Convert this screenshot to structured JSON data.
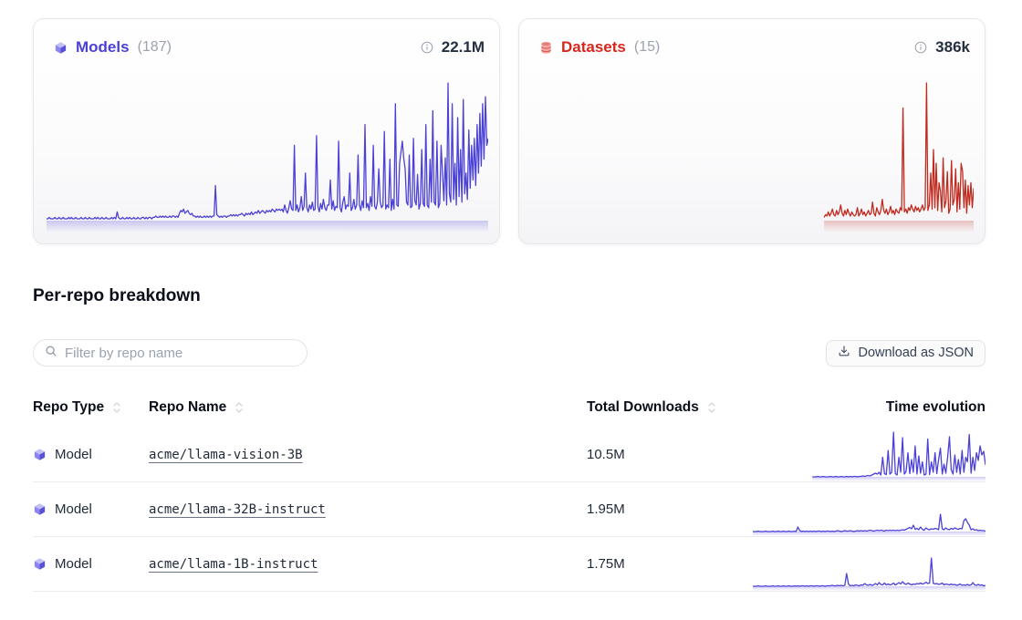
{
  "cards": [
    {
      "title": "Models",
      "count": "(187)",
      "total": "22.1M",
      "accent": "#4a40d4"
    },
    {
      "title": "Datasets",
      "count": "(15)",
      "total": "386k",
      "accent": "#d7271d"
    }
  ],
  "section": {
    "title": "Per-repo breakdown"
  },
  "controls": {
    "filter_placeholder": "Filter by repo name",
    "download_label": "Download as JSON"
  },
  "table": {
    "headers": [
      {
        "label": "Repo Type",
        "sortable": true
      },
      {
        "label": "Repo Name",
        "sortable": true
      },
      {
        "label": "Total Downloads",
        "sortable": true
      },
      {
        "label": "Time evolution",
        "sortable": false
      }
    ],
    "rows": [
      {
        "type": "Model",
        "name": "acme/llama-vision-3B",
        "downloads": "10.5M"
      },
      {
        "type": "Model",
        "name": "acme/llama-32B-instruct",
        "downloads": "1.95M"
      },
      {
        "type": "Model",
        "name": "acme/llama-1B-instruct",
        "downloads": "1.75M"
      }
    ]
  },
  "chart_data": [
    {
      "type": "line",
      "name": "Models downloads over time",
      "color": "#4b41d7",
      "offset": 0,
      "values": [
        2,
        2,
        3,
        2,
        2,
        2,
        3,
        2,
        2,
        3,
        2,
        2,
        3,
        2,
        2,
        2,
        3,
        2,
        3,
        2,
        2,
        3,
        2,
        2,
        2,
        3,
        2,
        2,
        3,
        2,
        2,
        3,
        2,
        2,
        2,
        3,
        2,
        3,
        2,
        2,
        3,
        2,
        2,
        3,
        2,
        2,
        2,
        3,
        2,
        3,
        2,
        7,
        3,
        2,
        2,
        3,
        2,
        2,
        3,
        2,
        3,
        2,
        2,
        3,
        2,
        2,
        3,
        2,
        2,
        3,
        3,
        2,
        3,
        2,
        3,
        3,
        2,
        3,
        3,
        4,
        3,
        3,
        4,
        3,
        4,
        3,
        4,
        3,
        3,
        4,
        3,
        4,
        4,
        3,
        4,
        3,
        6,
        8,
        7,
        9,
        6,
        7,
        8,
        6,
        5,
        6,
        4,
        4,
        3,
        4,
        3,
        4,
        3,
        3,
        4,
        3,
        4,
        3,
        4,
        3,
        4,
        4,
        26,
        5,
        4,
        3,
        4,
        3,
        4,
        4,
        3,
        4,
        4,
        5,
        4,
        5,
        4,
        5,
        4,
        5,
        5,
        6,
        5,
        4,
        6,
        5,
        6,
        5,
        7,
        5,
        6,
        7,
        6,
        8,
        6,
        7,
        8,
        7,
        6,
        8,
        7,
        8,
        7,
        9,
        8,
        7,
        9,
        8,
        9,
        8,
        9,
        7,
        12,
        8,
        6,
        10,
        15,
        9,
        8,
        55,
        8,
        12,
        7,
        10,
        18,
        8,
        11,
        35,
        10,
        7,
        12,
        9,
        14,
        8,
        9,
        62,
        11,
        7,
        13,
        9,
        16,
        10,
        8,
        12,
        12,
        30,
        9,
        15,
        8,
        11,
        10,
        58,
        10,
        7,
        14,
        18,
        9,
        12,
        11,
        35,
        8,
        10,
        16,
        9,
        12,
        48,
        12,
        8,
        15,
        10,
        70,
        10,
        13,
        8,
        18,
        11,
        55,
        11,
        9,
        14,
        38,
        14,
        10,
        12,
        65,
        9,
        12,
        10,
        45,
        8,
        16,
        9,
        85,
        12,
        11,
        42,
        50,
        58,
        46,
        38,
        14,
        12,
        48,
        10,
        11,
        60,
        15,
        12,
        34,
        9,
        13,
        52,
        13,
        11,
        70,
        12,
        10,
        45,
        14,
        80,
        14,
        12,
        58,
        10,
        13,
        55,
        36,
        15,
        46,
        12,
        100,
        20,
        14,
        85,
        16,
        42,
        12,
        75,
        18,
        52,
        14,
        88,
        20,
        35,
        16,
        66,
        24,
        55,
        30,
        60,
        26,
        70,
        35,
        78,
        40,
        85,
        45,
        90,
        55,
        60
      ]
    },
    {
      "type": "line",
      "name": "Datasets downloads over time",
      "color": "#c02a1e",
      "offset": 211,
      "values": [
        3,
        5,
        4,
        7,
        4,
        6,
        9,
        5,
        4,
        8,
        5,
        7,
        12,
        6,
        4,
        8,
        5,
        9,
        6,
        4,
        7,
        5,
        4,
        5,
        10,
        4,
        6,
        9,
        5,
        7,
        4,
        6,
        8,
        5,
        6,
        14,
        6,
        4,
        10,
        7,
        5,
        8,
        16,
        8,
        6,
        9,
        5,
        7,
        11,
        6,
        8,
        5,
        9,
        7,
        6,
        10,
        8,
        82,
        7,
        9,
        6,
        10,
        8,
        12,
        9,
        7,
        11,
        8,
        10,
        7,
        9,
        12,
        8,
        10,
        100,
        8,
        12,
        35,
        9,
        52,
        10,
        42,
        8,
        28,
        22,
        7,
        46,
        10,
        15,
        36,
        6,
        9,
        44,
        12,
        16,
        38,
        7,
        28,
        9,
        42,
        36,
        10,
        30,
        6,
        26,
        12,
        28,
        10,
        24
      ]
    },
    {
      "type": "sparkline",
      "name": "acme/llama-vision-3B time evolution",
      "color": "#4b41d7",
      "offset": 33,
      "values": [
        2,
        2,
        2,
        3,
        2,
        2,
        3,
        2,
        2,
        2,
        3,
        2,
        2,
        3,
        2,
        2,
        3,
        2,
        2,
        3,
        2,
        3,
        2,
        3,
        3,
        2,
        3,
        3,
        4,
        3,
        4,
        5,
        4,
        6,
        8,
        10,
        8,
        12,
        6,
        45,
        9,
        7,
        60,
        8,
        12,
        100,
        9,
        6,
        45,
        12,
        88,
        8,
        14,
        55,
        9,
        40,
        12,
        70,
        8,
        48,
        10,
        35,
        6,
        8,
        85,
        7,
        35,
        12,
        55,
        9,
        40,
        65,
        8,
        30,
        10,
        45,
        90,
        18,
        8,
        50,
        12,
        40,
        8,
        60,
        12,
        45,
        35,
        95,
        10,
        45,
        16,
        55,
        38,
        70,
        50,
        58,
        28
      ]
    },
    {
      "type": "sparkline",
      "name": "acme/llama-32B-instruct time evolution",
      "color": "#4b41d7",
      "offset": 0,
      "values": [
        2,
        2,
        2,
        3,
        2,
        2,
        2,
        3,
        2,
        2,
        2,
        3,
        2,
        2,
        3,
        2,
        2,
        3,
        2,
        2,
        3,
        2,
        2,
        3,
        2,
        12,
        4,
        2,
        3,
        2,
        3,
        2,
        3,
        2,
        3,
        2,
        3,
        3,
        2,
        3,
        2,
        3,
        3,
        2,
        3,
        2,
        3,
        4,
        3,
        2,
        3,
        4,
        3,
        3,
        4,
        3,
        2,
        3,
        4,
        3,
        4,
        3,
        4,
        3,
        4,
        5,
        4,
        3,
        4,
        5,
        4,
        5,
        4,
        3,
        5,
        4,
        5,
        4,
        5,
        4,
        5,
        4,
        5,
        6,
        5,
        7,
        9,
        11,
        8,
        16,
        7,
        9,
        6,
        12,
        7,
        5,
        10,
        7,
        6,
        8,
        7,
        9,
        8,
        6,
        40,
        8,
        6,
        10,
        7,
        6,
        9,
        7,
        10,
        8,
        7,
        9,
        8,
        26,
        30,
        22,
        16,
        6,
        8,
        5,
        6,
        4,
        5,
        4,
        4,
        3
      ]
    },
    {
      "type": "sparkline",
      "name": "acme/llama-1B-instruct time evolution",
      "color": "#4b41d7",
      "offset": 0,
      "values": [
        2,
        2,
        2,
        3,
        2,
        2,
        2,
        3,
        2,
        2,
        2,
        3,
        2,
        2,
        3,
        2,
        2,
        3,
        2,
        2,
        3,
        2,
        2,
        3,
        2,
        3,
        2,
        3,
        3,
        2,
        3,
        2,
        3,
        3,
        2,
        3,
        3,
        2,
        3,
        3,
        2,
        3,
        3,
        3,
        4,
        3,
        3,
        4,
        3,
        4,
        3,
        4,
        30,
        7,
        3,
        4,
        3,
        5,
        4,
        3,
        5,
        4,
        8,
        5,
        4,
        6,
        4,
        5,
        8,
        5,
        10,
        6,
        5,
        9,
        5,
        7,
        5,
        6,
        9,
        5,
        7,
        10,
        7,
        12,
        8,
        6,
        9,
        7,
        5,
        7,
        6,
        8,
        7,
        9,
        7,
        8,
        11,
        8,
        9,
        64,
        9,
        7,
        8,
        6,
        7,
        9,
        5,
        7,
        6,
        5,
        7,
        5,
        6,
        4,
        5,
        7,
        4,
        5,
        4,
        6,
        4,
        5,
        10,
        5,
        4,
        6,
        4,
        5,
        3,
        4
      ]
    }
  ]
}
